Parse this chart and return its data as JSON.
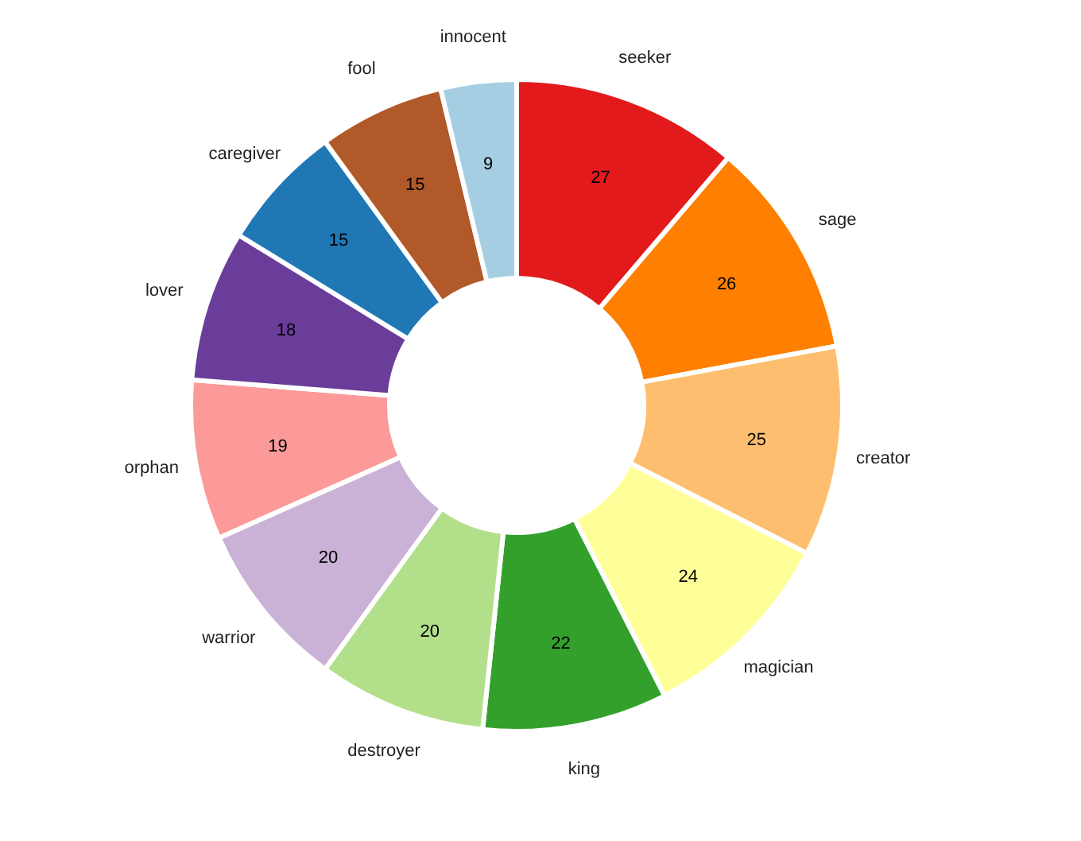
{
  "chart_data": {
    "type": "donut",
    "categories": [
      "seeker",
      "sage",
      "creator",
      "magician",
      "king",
      "destroyer",
      "warrior",
      "orphan",
      "lover",
      "caregiver",
      "fool",
      "innocent"
    ],
    "values": [
      27,
      26,
      25,
      24,
      22,
      20,
      20,
      19,
      18,
      15,
      15,
      9
    ],
    "colors": [
      "#e31a1c",
      "#ff7f00",
      "#fdbf6f",
      "#ffff99",
      "#33a02c",
      "#b2df8a",
      "#cab2d6",
      "#fb9a99",
      "#6a3d9a",
      "#1f78b4",
      "#b15928",
      "#a6cee3"
    ],
    "data_labels": true,
    "legend": false
  }
}
